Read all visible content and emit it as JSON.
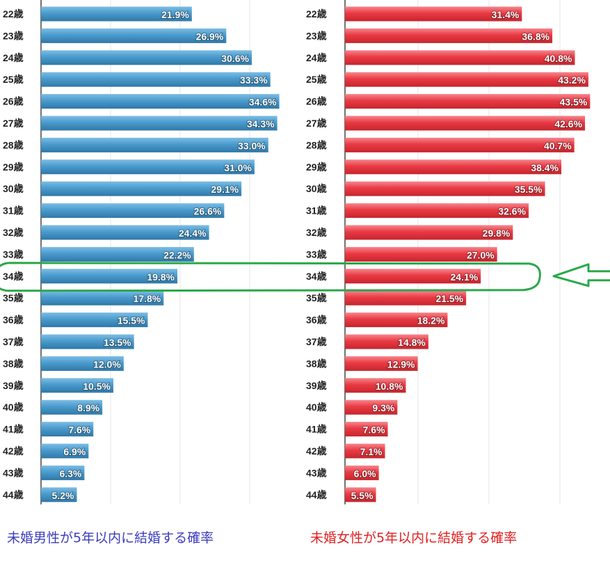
{
  "chart_data": [
    {
      "type": "bar",
      "orientation": "horizontal",
      "categories": [
        "22歳",
        "23歳",
        "24歳",
        "25歳",
        "26歳",
        "27歳",
        "28歳",
        "29歳",
        "30歳",
        "31歳",
        "32歳",
        "33歳",
        "34歳",
        "35歳",
        "36歳",
        "37歳",
        "38歳",
        "39歳",
        "40歳",
        "41歳",
        "42歳",
        "43歳",
        "44歳"
      ],
      "values": [
        21.9,
        26.9,
        30.6,
        33.3,
        34.6,
        34.3,
        33.0,
        31.0,
        29.1,
        26.6,
        24.4,
        22.2,
        19.8,
        17.8,
        15.5,
        13.5,
        12.0,
        10.5,
        8.9,
        7.6,
        6.9,
        6.3,
        5.2
      ],
      "data_labels": [
        "21.9%",
        "26.9%",
        "30.6%",
        "33.3%",
        "34.6%",
        "34.3%",
        "33.0%",
        "31.0%",
        "29.1%",
        "26.6%",
        "24.4%",
        "22.2%",
        "19.8%",
        "17.8%",
        "15.5%",
        "13.5%",
        "12.0%",
        "10.5%",
        "8.9%",
        "7.6%",
        "6.9%",
        "6.3%",
        "5.2%"
      ],
      "title": "未婚男性が5年以内に結婚する確率",
      "color": "#3e8fc1",
      "xlim": [
        0,
        35
      ],
      "grid": true,
      "highlight": "34歳"
    },
    {
      "type": "bar",
      "orientation": "horizontal",
      "categories": [
        "22歳",
        "23歳",
        "24歳",
        "25歳",
        "26歳",
        "27歳",
        "28歳",
        "29歳",
        "30歳",
        "31歳",
        "32歳",
        "33歳",
        "34歳",
        "35歳",
        "36歳",
        "37歳",
        "38歳",
        "39歳",
        "40歳",
        "41歳",
        "42歳",
        "43歳",
        "44歳"
      ],
      "values": [
        31.4,
        36.8,
        40.8,
        43.2,
        43.5,
        42.6,
        40.7,
        38.4,
        35.5,
        32.6,
        29.8,
        27.0,
        24.1,
        21.5,
        18.2,
        14.8,
        12.9,
        10.8,
        9.3,
        7.6,
        7.1,
        6.0,
        5.5
      ],
      "data_labels": [
        "31.4%",
        "36.8%",
        "40.8%",
        "43.2%",
        "43.5%",
        "42.6%",
        "40.7%",
        "38.4%",
        "35.5%",
        "32.6%",
        "29.8%",
        "27.0%",
        "24.1%",
        "21.5%",
        "18.2%",
        "14.8%",
        "12.9%",
        "10.8%",
        "9.3%",
        "7.6%",
        "7.1%",
        "6.0%",
        "5.5%"
      ],
      "title": "未婚女性が5年以内に結婚する確率",
      "color": "#e8323c",
      "xlim": [
        0,
        45
      ],
      "grid": true,
      "highlight": "34歳"
    }
  ],
  "annotation": {
    "type": "highlight-ellipse-with-arrow",
    "row": "34歳",
    "color": "#2aa84a"
  },
  "captions": {
    "left": "未婚男性が5年以内に結婚する確率",
    "right": "未婚女性が5年以内に結婚する確率",
    "left_color": "#3b3bbf",
    "right_color": "#e02020"
  }
}
